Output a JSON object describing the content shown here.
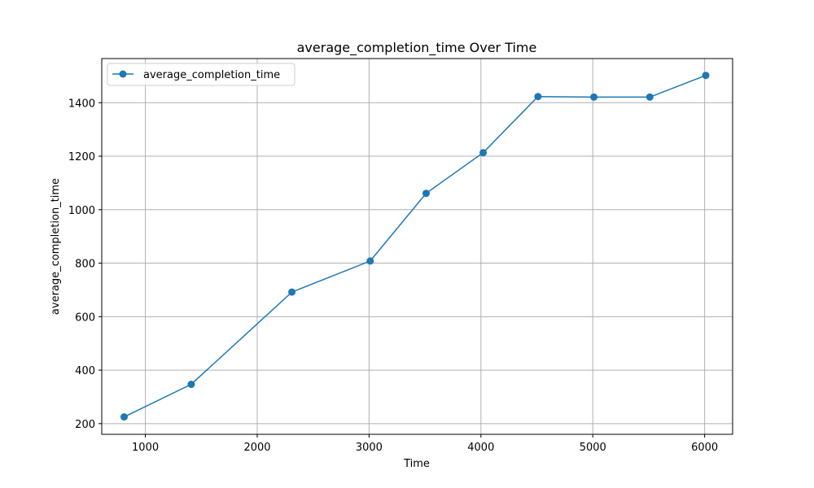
{
  "chart_data": {
    "type": "line",
    "title": "average_completion_time Over Time",
    "xlabel": "Time",
    "ylabel": "average_completion_time",
    "xlim": [
      610,
      6250
    ],
    "ylim": [
      160,
      1565
    ],
    "xticks": [
      1000,
      2000,
      3000,
      4000,
      5000,
      6000
    ],
    "yticks": [
      200,
      400,
      600,
      800,
      1000,
      1200,
      1400
    ],
    "grid": true,
    "legend_position": "top-left",
    "series": [
      {
        "name": "average_completion_time",
        "color": "#1f77b4",
        "marker": "circle",
        "x": [
          810,
          1410,
          2310,
          3010,
          3510,
          4020,
          4510,
          5010,
          5510,
          6010
        ],
        "y": [
          225,
          347,
          692,
          808,
          1061,
          1213,
          1423,
          1421,
          1421,
          1502
        ]
      }
    ]
  }
}
